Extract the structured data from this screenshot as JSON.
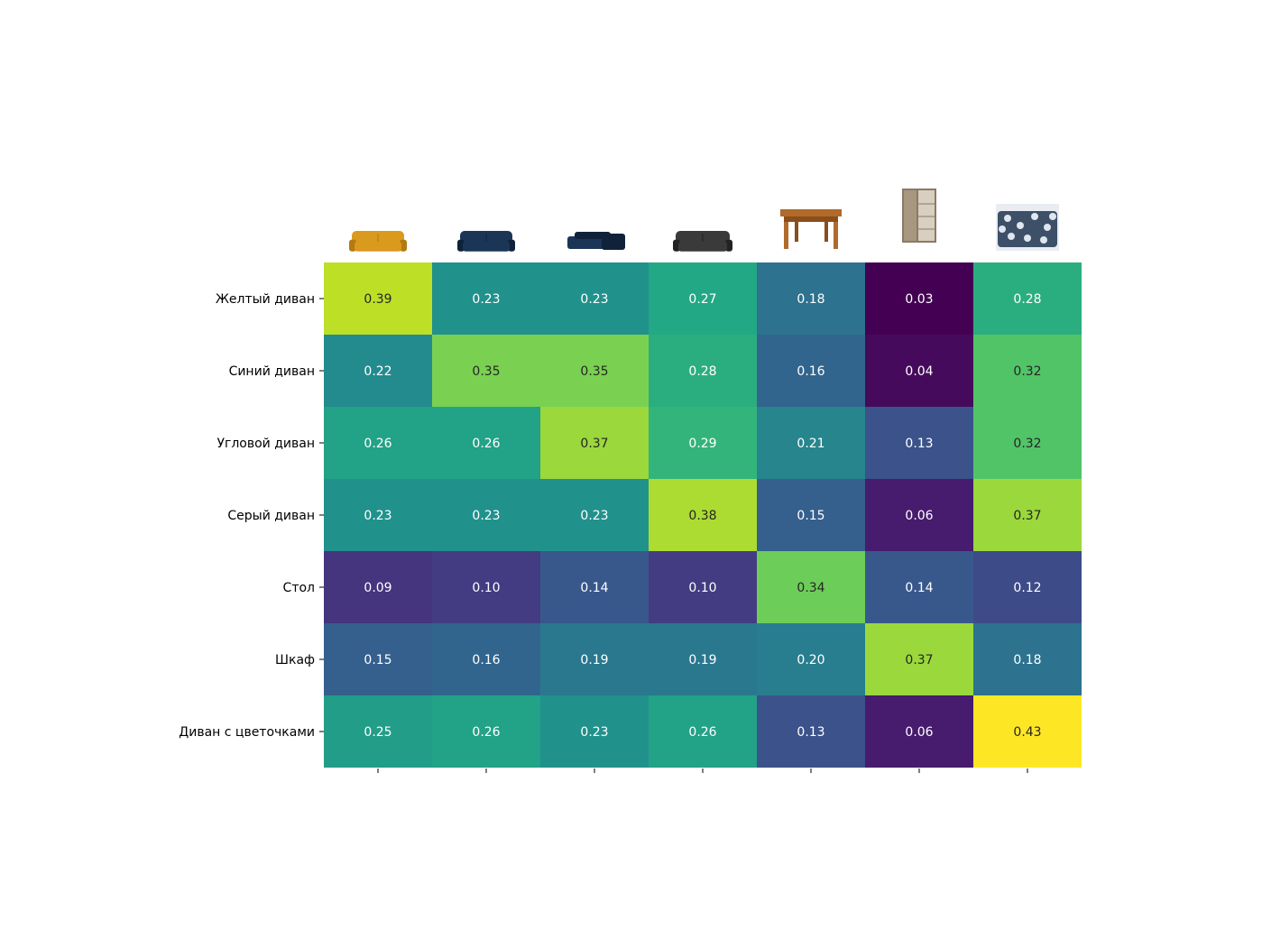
{
  "chart_data": {
    "type": "heatmap",
    "row_labels": [
      "Желтый диван",
      "Синий диван",
      "Угловой диван",
      "Серый диван",
      "Стол",
      "Шкаф",
      "Диван с цветочками"
    ],
    "column_images": [
      {
        "icon": "yellow-sofa-image",
        "color": "#d99a1e"
      },
      {
        "icon": "blue-sofa-image",
        "color": "#1b3557"
      },
      {
        "icon": "blue-corner-sofa-image",
        "color": "#1b3557"
      },
      {
        "icon": "grey-sofa-image",
        "color": "#3a3a3a"
      },
      {
        "icon": "wooden-table-image",
        "color": "#b06a2a"
      },
      {
        "icon": "wardrobe-image",
        "color": "#8a7a66"
      },
      {
        "icon": "floral-sofa-image",
        "color": "#3d5068"
      }
    ],
    "values": [
      [
        0.39,
        0.23,
        0.23,
        0.27,
        0.18,
        0.03,
        0.28
      ],
      [
        0.22,
        0.35,
        0.35,
        0.28,
        0.16,
        0.04,
        0.32
      ],
      [
        0.26,
        0.26,
        0.37,
        0.29,
        0.21,
        0.13,
        0.32
      ],
      [
        0.23,
        0.23,
        0.23,
        0.38,
        0.15,
        0.06,
        0.37
      ],
      [
        0.09,
        0.1,
        0.14,
        0.1,
        0.34,
        0.14,
        0.12
      ],
      [
        0.15,
        0.16,
        0.19,
        0.19,
        0.2,
        0.37,
        0.18
      ],
      [
        0.25,
        0.26,
        0.23,
        0.26,
        0.13,
        0.06,
        0.43
      ]
    ],
    "vmin": 0.03,
    "vmax": 0.43,
    "colormap": "viridis",
    "annotations": "values shown in each cell with 2 decimals",
    "colorbar": false
  }
}
